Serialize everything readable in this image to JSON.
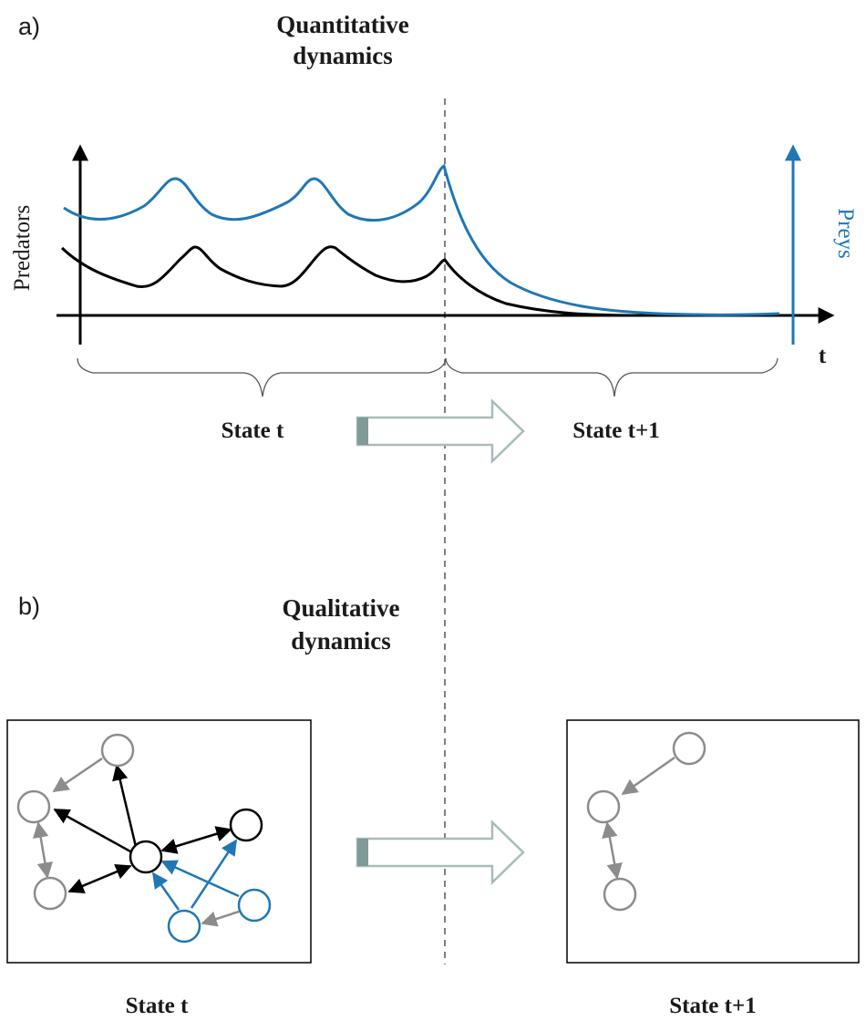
{
  "panel_a": {
    "label": "a)",
    "title_line1": "Quantitative",
    "title_line2": "dynamics",
    "y_left_label": "Predators",
    "y_right_label": "Preys",
    "x_label": "t",
    "state_left": "State t",
    "state_right": "State t+1"
  },
  "panel_b": {
    "label": "b)",
    "title_line1": "Qualitative",
    "title_line2": "dynamics",
    "state_left": "State t",
    "state_right": "State t+1"
  },
  "colors": {
    "predator": "#000000",
    "prey": "#1f77b4",
    "inactive": "#8c8c8c",
    "arrow_fill": "#7f9a98"
  }
}
